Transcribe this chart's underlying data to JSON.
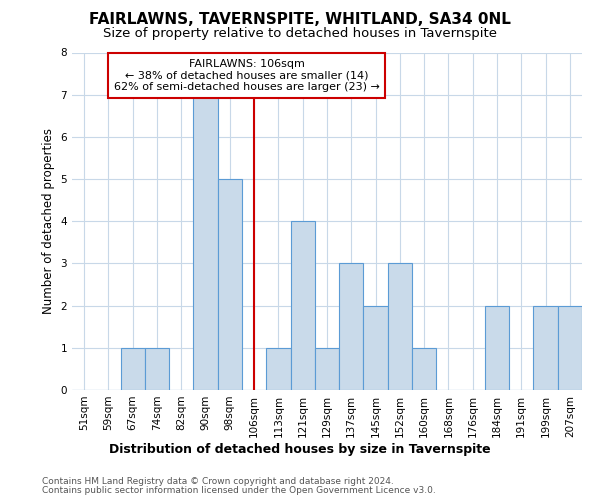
{
  "title": "FAIRLAWNS, TAVERNSPITE, WHITLAND, SA34 0NL",
  "subtitle": "Size of property relative to detached houses in Tavernspite",
  "xlabel": "Distribution of detached houses by size in Tavernspite",
  "ylabel": "Number of detached properties",
  "categories": [
    "51sqm",
    "59sqm",
    "67sqm",
    "74sqm",
    "82sqm",
    "90sqm",
    "98sqm",
    "106sqm",
    "113sqm",
    "121sqm",
    "129sqm",
    "137sqm",
    "145sqm",
    "152sqm",
    "160sqm",
    "168sqm",
    "176sqm",
    "184sqm",
    "191sqm",
    "199sqm",
    "207sqm"
  ],
  "values": [
    0,
    0,
    1,
    1,
    0,
    7,
    5,
    0,
    1,
    4,
    1,
    3,
    2,
    3,
    1,
    0,
    0,
    2,
    0,
    2,
    2
  ],
  "highlight_index": 7,
  "annotation_line1": "FAIRLAWNS: 106sqm",
  "annotation_line2": "← 38% of detached houses are smaller (14)",
  "annotation_line3": "62% of semi-detached houses are larger (23) →",
  "bar_color": "#c9daea",
  "bar_edge_color": "#5b9bd5",
  "highlight_line_color": "#cc0000",
  "annotation_box_color": "#ffffff",
  "annotation_box_edge": "#cc0000",
  "ylim": [
    0,
    8
  ],
  "yticks": [
    0,
    1,
    2,
    3,
    4,
    5,
    6,
    7,
    8
  ],
  "background_color": "#ffffff",
  "grid_color": "#c8d8e8",
  "footer_line1": "Contains HM Land Registry data © Crown copyright and database right 2024.",
  "footer_line2": "Contains public sector information licensed under the Open Government Licence v3.0.",
  "title_fontsize": 11,
  "subtitle_fontsize": 9.5,
  "xlabel_fontsize": 9,
  "ylabel_fontsize": 8.5,
  "tick_fontsize": 7.5,
  "footer_fontsize": 6.5,
  "annotation_fontsize": 8
}
